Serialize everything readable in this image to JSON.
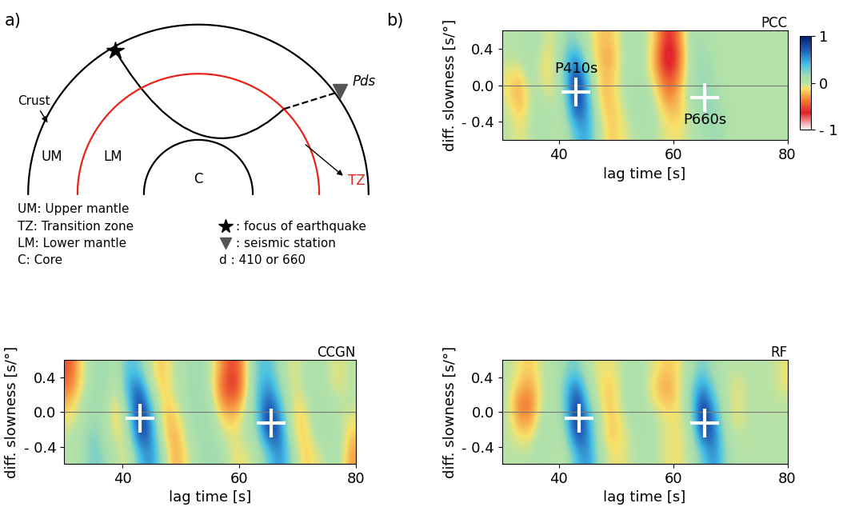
{
  "panel_labels": [
    "a)",
    "b)"
  ],
  "diagram": {
    "layers": {
      "crust": "Crust",
      "upper_mantle": "UM",
      "lower_mantle": "LM",
      "core": "C",
      "transition_zone": "TZ"
    },
    "phase": "Pds",
    "legend_left": [
      "UM: Upper mantle",
      "TZ: Transition zone",
      "LM: Lower mantle",
      "C: Core"
    ],
    "legend_symbols": [
      {
        "marker": "star",
        "text": ": focus of earthquake"
      },
      {
        "marker": "triangle",
        "text": ": seismic station"
      }
    ],
    "legend_note": "d : 410 or 660"
  },
  "chart_data": [
    {
      "type": "heatmap",
      "title": "PCC",
      "x_label": "lag time [s]",
      "y_label": "diff. slowness [s/°]",
      "xlim": [
        30,
        80
      ],
      "ylim": [
        -0.6,
        0.6
      ],
      "xticks": [
        40,
        60,
        80
      ],
      "yticks": [
        {
          "value": -0.4,
          "label": "- 0.4"
        },
        {
          "value": 0.0,
          "label": "0.0"
        },
        0.4
      ],
      "cell_x_range": [
        30,
        80
      ],
      "cell_y_range": [
        -0.6,
        0.6
      ],
      "cells": [
        [
          0,
          -0.1,
          0,
          0.1,
          0,
          0,
          0.4,
          0.5,
          0,
          -0.2,
          -0.1,
          0,
          0.1,
          0,
          -0.1,
          -0.1,
          0,
          0.1,
          0.2,
          0.1,
          0,
          0,
          0,
          0,
          0
        ],
        [
          0,
          -0.2,
          0,
          0.1,
          0,
          0.1,
          0.8,
          0.5,
          -0.1,
          -0.2,
          -0.1,
          0.1,
          0.1,
          0,
          -0.2,
          -0.2,
          0,
          0.2,
          0.2,
          0.1,
          0,
          0,
          0,
          0,
          0
        ],
        [
          -0.1,
          -0.3,
          0,
          0,
          -0.1,
          0.2,
          1.0,
          0.4,
          -0.2,
          -0.2,
          0,
          0.1,
          0.1,
          -0.1,
          -0.4,
          -0.2,
          0.1,
          0.2,
          0.2,
          0,
          0,
          0,
          0,
          0,
          0
        ],
        [
          -0.1,
          -0.2,
          0.1,
          -0.1,
          -0.1,
          0.3,
          0.95,
          0.3,
          -0.2,
          -0.2,
          0,
          0.1,
          0,
          -0.2,
          -0.6,
          -0.3,
          0.1,
          0.2,
          0.1,
          0,
          0,
          0,
          0,
          0,
          0
        ],
        [
          0,
          0,
          0.1,
          -0.1,
          -0.1,
          0.3,
          0.6,
          0,
          -0.2,
          -0.3,
          0,
          0.1,
          0,
          -0.3,
          -0.9,
          -0.4,
          0.1,
          0.2,
          0.1,
          0,
          0,
          0,
          0,
          0,
          0
        ],
        [
          0,
          0,
          0.1,
          0,
          -0.1,
          0.2,
          0.2,
          0,
          -0.2,
          -0.2,
          0,
          0.1,
          0,
          -0.2,
          -0.7,
          -0.3,
          0.1,
          0.1,
          0,
          0,
          0,
          0,
          0,
          0,
          0
        ]
      ],
      "colorbar": {
        "range": [
          -1,
          1
        ],
        "ticks": [
          1,
          0,
          {
            "value": -1,
            "label": "- 1"
          }
        ]
      },
      "picks": [
        {
          "x": 43,
          "y": -0.07,
          "label": "P410s"
        },
        {
          "x": 65.5,
          "y": -0.13,
          "label": "P660s"
        }
      ]
    },
    {
      "type": "heatmap",
      "title": "CCGN",
      "x_label": "lag time [s]",
      "y_label": "diff. slowness [s/°]",
      "xlim": [
        30,
        80
      ],
      "ylim": [
        -0.6,
        0.6
      ],
      "xticks": [
        40,
        60,
        80
      ],
      "yticks": [
        {
          "value": -0.4,
          "label": "- 0.4"
        },
        {
          "value": 0.0,
          "label": "0.0"
        },
        0.4
      ],
      "cell_x_range": [
        30,
        80
      ],
      "cell_y_range": [
        -0.6,
        0.6
      ],
      "cells": [
        [
          0,
          0.1,
          0.3,
          0.2,
          0,
          -0.1,
          0.4,
          0.6,
          0.1,
          -0.3,
          -0.1,
          0.1,
          0.2,
          0.1,
          -0.1,
          -0.1,
          0,
          0.3,
          0.6,
          0.2,
          -0.2,
          -0.1,
          0,
          0.1,
          -0.3
        ],
        [
          0,
          0.1,
          0.3,
          0.1,
          -0.1,
          0,
          0.8,
          0.6,
          -0.1,
          -0.3,
          0,
          0.1,
          0.2,
          0,
          -0.1,
          0,
          0.1,
          0.7,
          0.7,
          0,
          -0.2,
          0,
          0.1,
          0.1,
          -0.2
        ],
        [
          -0.1,
          0,
          0.2,
          0.1,
          -0.2,
          0.1,
          1.0,
          0.5,
          -0.2,
          -0.2,
          0,
          0.2,
          0.1,
          -0.1,
          -0.2,
          0,
          0.2,
          1.0,
          0.6,
          -0.1,
          -0.2,
          0.1,
          0.1,
          0,
          -0.1
        ],
        [
          -0.2,
          0,
          0.2,
          0.1,
          -0.2,
          0.3,
          0.95,
          0.3,
          -0.2,
          -0.1,
          0.1,
          0.2,
          0.1,
          -0.3,
          -0.4,
          -0.1,
          0.3,
          0.8,
          0.4,
          -0.1,
          -0.1,
          0.1,
          0.1,
          0,
          0
        ],
        [
          -0.4,
          -0.1,
          0.1,
          0.2,
          -0.1,
          0.5,
          0.7,
          0,
          -0.2,
          0,
          0.1,
          0.2,
          0,
          -0.4,
          -0.7,
          -0.2,
          0.3,
          0.6,
          0.2,
          -0.1,
          0,
          0.1,
          0,
          -0.1,
          0
        ],
        [
          -0.5,
          -0.1,
          0.1,
          0.2,
          0,
          0.4,
          0.3,
          -0.1,
          -0.2,
          0,
          0.1,
          0.2,
          0,
          -0.3,
          -0.6,
          -0.2,
          0.3,
          0.4,
          0.1,
          -0.1,
          0,
          0.1,
          0,
          -0.1,
          0
        ]
      ],
      "picks": [
        {
          "x": 43,
          "y": -0.07
        },
        {
          "x": 65.5,
          "y": -0.13
        }
      ]
    },
    {
      "type": "heatmap",
      "title": "RF",
      "x_label": "lag time [s]",
      "y_label": "diff. slowness [s/°]",
      "xlim": [
        30,
        80
      ],
      "ylim": [
        -0.6,
        0.6
      ],
      "xticks": [
        40,
        60,
        80
      ],
      "yticks": [
        {
          "value": -0.4,
          "label": "- 0.4"
        },
        {
          "value": 0.0,
          "label": "0.0"
        },
        0.4
      ],
      "cell_x_range": [
        30,
        80
      ],
      "cell_y_range": [
        -0.6,
        0.6
      ],
      "cells": [
        [
          0,
          0,
          0,
          0.1,
          0,
          0,
          0.4,
          0.6,
          0.1,
          -0.1,
          -0.1,
          0,
          0.1,
          0,
          -0.1,
          -0.1,
          0,
          0.3,
          0.6,
          0.2,
          0,
          0,
          0,
          0,
          0
        ],
        [
          0,
          -0.1,
          -0.1,
          0.1,
          0,
          0.1,
          0.8,
          0.6,
          0,
          -0.2,
          -0.1,
          0,
          0.1,
          0,
          -0.1,
          -0.1,
          0,
          0.7,
          0.7,
          0.1,
          0,
          0,
          0,
          0,
          0
        ],
        [
          0,
          -0.3,
          -0.3,
          0.1,
          0,
          0.2,
          1.0,
          0.5,
          0,
          -0.2,
          -0.1,
          0.1,
          0.1,
          0,
          -0.1,
          -0.1,
          0.1,
          1.0,
          0.6,
          0,
          -0.1,
          0,
          0,
          0,
          0
        ],
        [
          0,
          -0.4,
          -0.4,
          0,
          0,
          0.3,
          0.95,
          0.3,
          -0.1,
          -0.2,
          0,
          0.1,
          0,
          -0.1,
          -0.2,
          -0.1,
          0.2,
          0.9,
          0.4,
          0,
          -0.1,
          0,
          0,
          0,
          0
        ],
        [
          0,
          -0.2,
          -0.3,
          0,
          0,
          0.3,
          0.7,
          0.1,
          -0.1,
          -0.2,
          0,
          0.1,
          0,
          -0.2,
          -0.3,
          -0.1,
          0.2,
          0.6,
          0.2,
          0,
          -0.1,
          0,
          0,
          0,
          -0.1
        ],
        [
          0,
          -0.1,
          -0.2,
          0,
          0,
          0.2,
          0.3,
          0,
          -0.1,
          -0.1,
          0,
          0.1,
          0,
          -0.1,
          -0.2,
          -0.1,
          0.1,
          0.3,
          0.1,
          0,
          0,
          0,
          0,
          0,
          -0.1
        ]
      ],
      "picks": [
        {
          "x": 43.5,
          "y": -0.07
        },
        {
          "x": 65.5,
          "y": -0.13
        }
      ]
    }
  ]
}
